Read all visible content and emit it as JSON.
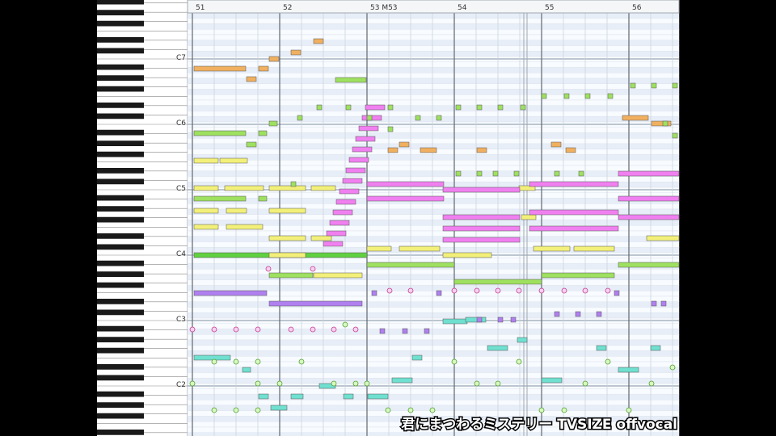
{
  "header": {
    "measures": [
      "51",
      "52",
      "53 M53",
      "54",
      "55",
      "56"
    ]
  },
  "keyboard": {
    "octave_labels": [
      "C7",
      "C6",
      "C5",
      "C4",
      "C3",
      "C2"
    ]
  },
  "caption": "君にまつわるミステリー TVSIZE offvocal"
}
